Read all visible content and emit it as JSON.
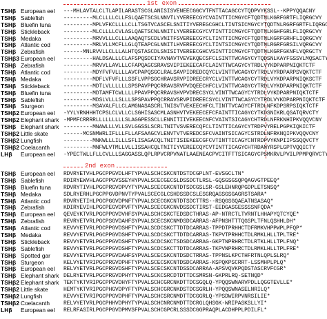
{
  "block1": {
    "header": "1st exon",
    "rows": [
      {
        "gene": "TSHβ",
        "species": "European eel",
        "seq": "---MHLAVTALCLTLAPILARASTSCGLANISISVENEECGGCVTFNTTACAGCCYTQDPVYKSSL--KPPYQQACNY"
      },
      {
        "gene": "TSHβ",
        "species": "Sablefish",
        "seq": "---------MLCLLLLCLLFSLQAETSCSLNNVTLYVEREECGYCVAINTTICMGYCFTQDTNLKGRFGRTFLIQRGCVY"
      },
      {
        "gene": "TSHβ",
        "species": "Bluefin tuna",
        "seq": "---------MPLVFKCLLLLCLLTSGTVCASCELSNITIYVEREGCGHCLTINTSICMGYCYTQDTNLRGRFGRTFLIQRGCVY"
      },
      {
        "gene": "TSHβ",
        "species": "Stickleback",
        "seq": "---------MLCLLLLCVLASLQAETSCNLNNITLYVEREECGYCVTINTTICMGYCFTQDTNLKGHFGRLFLIQRGCVY"
      },
      {
        "gene": "TSHβ",
        "species": "Medaka",
        "seq": "---------MRVVLLLCLLLAAQAQTSCDLVNITFSVEREECGYCLTINTTICMGYCFTQDTNLKGRFGRHFLIQRGCVY"
      },
      {
        "gene": "TSHβ",
        "species": "Atlantic cod",
        "seq": "---------MRLVLLMCFLLGLQTEAPCGLNNITLHVEREECGYCLTINTSICMGYCYTQDTNLRGRFGRSILVQRGCVY"
      },
      {
        "gene": "TSHβ",
        "species": "Zebrafish",
        "seq": "------MNLRVVLLCLLLALHTQSTASCDLSNISITVEREECGHCVSINTTICMGYCFTQDTNLKGRFGKNFLVQRGCTY"
      },
      {
        "gene": "TSHβ3",
        "species": "European eel",
        "seq": "---------HALDSALLLCLAFSPQSDCIYAVNAVTVEVEKQECSFCLSINTTWCAGYCYTQDSNLKAYFGSSVLMQSACTY"
      },
      {
        "gene": "TSHβ",
        "species": "Zebrafish",
        "seq": "---------MRVVLLAVLLLCFAPQAGCSRAVSVIPIEKEECAFCLAINTTWCAGYCYTRDLVYKDPARPNIQKTCTF"
      },
      {
        "gene": "TSHβ",
        "species": "Atlantic cod",
        "seq": "---------MDYFVFVLLLLAVCPAPQSGCLRALSAVPIDREDCQYCLVINTTWCAGYCYTRDLVYRDPARPSVQKTCTF"
      },
      {
        "gene": "TSHβ",
        "species": "Medaka",
        "seq": "---------MDFLVFVFLLLSSFLVPPSGCHRAVSRVPIDREECRYCLVINTTWCAGYCYTRDLVYKDPARPNIQKSCTF"
      },
      {
        "gene": "TSHβ",
        "species": "Stickleback",
        "seq": "---------MDTLVLLLLLLSPSPAVPPQCRRAVSRVPVDQEECHFCLVINTTWCAGYCYTRDLVYKDPARPNIQKTCTF"
      },
      {
        "gene": "TSHβ",
        "species": "Bluefin tuna",
        "seq": "---------MDTAMFTCWLLLLPPAVPPQCRRAVSHVPVDRECSYCLVINTTWCAGYCYTRDLVYKDPARPNIQKTCTF"
      },
      {
        "gene": "TSHβ",
        "species": "Sablefish",
        "seq": "---------MDSLVLLLSLLLSPSPAVPPQCRRAVSRVPIDREECSYCLVINTTWCAGYCYTRDLVYKDPARPNIQKTCTF"
      },
      {
        "gene": "TSHβ",
        "species": "Sturgeon",
        "seq": "---------MSAVALFLLCLAMGNASASCRLTNISVTVEKEECHFCLTINTTVCAGYCFTRDLNFKDPSRPSIQKTCTF"
      },
      {
        "gene": "TSHβ2",
        "species": "European eel",
        "seq": "-YYLYRNHHHTCPSLCLVLLCLSGHISASCMLASNHVTVEKEECEFCFAINTTICAGYCYTKDSNIKRLQSATQRVCTY"
      },
      {
        "gene": "TSHβ2",
        "species": "Elephant shark",
        "seq": "-MPMFCRRRRLLLLLLLLLSLAGGPESSCLLENNITIIVEKEECNFCVAINTSICAGYCHTRDLNFRKNHIPKVQQVCNY"
      },
      {
        "gene": "TSHβ",
        "species": "Elephant shark",
        "seq": "---------MNAWLLLVLLSVLGGSSLSCRLTNITVSVERECQFCLTINTTICAGYCYTRDPVYRELPGPKIQKICTF"
      },
      {
        "gene": "TSHβ2",
        "species": "Little skate",
        "seq": "------MCSNMWRLIFLLLFLLAFSAAGCVLENVTVTVEREDCSFCVAINTSICAGYCSTRDLNFRKNQIPKVQQVCNY"
      },
      {
        "gene": "TSHβ2",
        "species": "Lungfish",
        "seq": "---------MNKWLLLILLLSFLISAGACQLTNITISIEKEECGFCVTINTTICAGYCNTRDPVYKNPIIPSSQQVCTY"
      },
      {
        "gene": "TSHβ2",
        "species": "Coelacanth",
        "seq": "---------MNFWLVTMLLVLLISSAHCQLTNITIYVEREECQYCVTINTTICAGYCHTRDANYRSPLGPTVQQICTY"
      },
      {
        "gene": "LHβ",
        "species": "European eel",
        "seq": "-YPECTWLLFLLCVLLLSAGGASSLQPLRPVCRPVNATLAAENEACPVCITFTTSICAGYCPSMKRVLPVILPPMPQRVCTY"
      }
    ]
  },
  "block2": {
    "header": "2nd exon",
    "rows": [
      {
        "gene": "TSHβ",
        "species": "European eel",
        "seq": "RDVRYETVHLPGCPPGVDLHFTYPVALSCHCSKCNTDSTDCGPLNT-EVSGCLTN*"
      },
      {
        "gene": "TSHβ",
        "species": "Sablefish",
        "seq": "RDIRYEWVHLAGCPPGVSSEYHYPVALSCECGECSLDSSDCTLRSL-GQSGSGSQPQAGVGTPEEQ*"
      },
      {
        "gene": "TSHβ",
        "species": "Bluefin tuna",
        "seq": "RDVRYTIVHLPGCPRGVDPVYTYPVALSCECGKCNTDTSDCGSLSR-GSLEHNRQPGDPLETSNSQ*"
      },
      {
        "gene": "TSHβ",
        "species": "Medaka",
        "seq": "SDLRYERHLPGCPPGVDPNVTYPVALSCECGLCSHDSSDCSLESGRQAGSGSGAGRSTSARA*"
      },
      {
        "gene": "TSHβ",
        "species": "Atlantic cod",
        "seq": "RDVRYETIHLPGCPGGVDPNFTYPVALSCECGKCNTDTSDCTTRS--RSQGSGQAEATNSASAQ*"
      },
      {
        "gene": "TSHβ",
        "species": "Zebrafish",
        "seq": "KDIRYEVIHLPGCPEGVDPVFTYPVALSCECGKCNVDSSDCTIRST-EEDGASGESSSSNFQDA*"
      },
      {
        "gene": "TSHβ",
        "species": "European eel",
        "seq": "QEVEYKTVRLPGCPPGVDVHFSYPVALSCHCSKCTEDSDCTHRAS-AP-NTRCTLTVRNTLHHAPYQTCYQE*"
      },
      {
        "gene": "TSHβ",
        "species": "Zebrafish",
        "seq": "REVRYETVRLPGCPSGVDAHFSYPVALSCECSKCNMDSDCARRAS-AFPNSHTTTQGSPLTFNLQSHHLDH*"
      },
      {
        "gene": "TSHβ",
        "species": "Atlantic cod",
        "seq": "KEVVYETVRLPDCPPGVDSHFTYPVALSCDCSKCTTDTDCARRAS-TPPDTPRHHCTDFRMKVHPPWPLPFQP*"
      },
      {
        "gene": "TSHβ",
        "species": "Medaka",
        "seq": "REVVYETVRLPGCPPGVDSHFTYPVALSCDCSKCTTDTDCARRAS-TKPVTPRHHCTDLRMKLHLLTPLTRE*"
      },
      {
        "gene": "TSHβ",
        "species": "Stickleback",
        "seq": "REVVYETVRLPGCPPGVDSHFTYPVALSCDCSKCTSDSDCARRAG-GKPTNPRHRCTDLRTKLHLLTPLFNQ*"
      },
      {
        "gene": "TSHβ",
        "species": "Sablefish",
        "seq": "REVVYETVRLPGCPPGVDSHFTYPVALSCDCSKCTTDTDCARRAS-TKPVNPRHRCTDLRMKLHLLTPLFRE*"
      },
      {
        "gene": "TSHβ",
        "species": "Spotted gar",
        "seq": "REVVYETVRLPGCPPGVDAHFSYPVALSCECSKCNTDSDCTRRAS-TPPNSLKPCTHFRTNLQPLSLRQ*"
      },
      {
        "gene": "TSHβ",
        "species": "Sturgeon",
        "seq": "KELVYETVRIPGCPRGVDPHFTYPVALSCECSKCNTDSDCARRAS-KSPQKPSCRRT-LSSMHPLPLQ*"
      },
      {
        "gene": "TSHβ",
        "species": "European eel",
        "seq": "RELVYETVRLPGCPRGVDSHFTYPVALSCECSKCNTDSSDCARRAA-APSVQVKPQDSTASCRVFCGR*"
      },
      {
        "gene": "TSHβ",
        "species": "Elephant shark",
        "seq": "DELRYETVRLPGCPRGVDPHYTYPVALSCKCSRCDTDTTDCSMRSN-GKPRLRQ-SETNQD*"
      },
      {
        "gene": "TSHβ2",
        "species": "Elephant shark",
        "seq": "TEKTYKTVRIPGCPPGVDHYFTYPVALSCHCGRCNKDTTDCSGQLQ-YPQQSWNARVPDLLQGGTEVLLE*"
      },
      {
        "gene": "TSHβ2",
        "species": "Little skate",
        "seq": "HEMTYKTVRIPGCPHGVDPYFTYPVALSCHCGRCNKDSTDCSGRLH-YPQQSWNASELNRILQ*"
      },
      {
        "gene": "TSHβ2",
        "species": "Lungfish",
        "seq": "KEVVYETVRIPGCPPGVDPHFTYPVALSCHCSRCNMDTTDCGGRLQ-YPSDWIRPVNRSILIE*"
      },
      {
        "gene": "TSHβ2",
        "species": "Coelacanth",
        "seq": "RELVYETVRLPGCPHHVDPHYTYPVALSCHCNRCNMDTTDCRGLQHSGK-WRIPASKSLLYI*"
      },
      {
        "gene": "LHβ",
        "species": "European eel",
        "seq": "RELRFASIRLPGCPPGVDPMVSFPVALSCHCGPCRLSSSDCGGPRAQPLACDHPPLPDILFL*"
      }
    ]
  }
}
